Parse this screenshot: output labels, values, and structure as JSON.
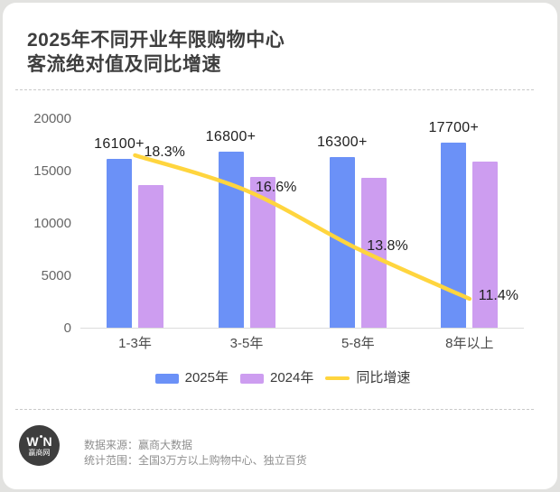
{
  "card": {
    "title_line1": "2025年不同开业年限购物中心",
    "title_line2": "客流绝对值及同比增速"
  },
  "chart_data": {
    "type": "bar",
    "title": "2025年不同开业年限购物中心客流绝对值及同比增速",
    "categories": [
      "1-3年",
      "3-5年",
      "5-8年",
      "8年以上"
    ],
    "series": [
      {
        "name": "2025年",
        "kind": "bar",
        "color": "#6B91F7",
        "values": [
          16100,
          16800,
          16300,
          17700
        ],
        "labels": [
          "16100+",
          "16800+",
          "16300+",
          "17700+"
        ]
      },
      {
        "name": "2024年",
        "kind": "bar",
        "color": "#CD9DF0",
        "values": [
          13600,
          14400,
          14300,
          15900
        ],
        "labels": []
      },
      {
        "name": "同比增速",
        "kind": "line",
        "color": "#FFD53E",
        "values": [
          18.3,
          16.6,
          13.8,
          11.4
        ],
        "labels": [
          "18.3%",
          "16.6%",
          "13.8%",
          "11.4%"
        ],
        "unit": "%"
      }
    ],
    "xlabel": "",
    "ylabel": "",
    "y_axis": {
      "ticks": [
        0,
        5000,
        10000,
        15000,
        20000
      ],
      "min": 0,
      "max": 20000
    },
    "grid": false,
    "legend_position": "bottom"
  },
  "colors": {
    "bar_2025": "#6B91F7",
    "bar_2024": "#CD9DF0",
    "growth_line": "#FFD53E",
    "card_bg": "#FFFFFF",
    "page_bg": "#E2E2E0"
  },
  "logo": {
    "mark_left": "W",
    "mark_right": "N",
    "label": "赢商网"
  },
  "footer": {
    "source": "数据来源：赢商大数据",
    "scope": "统计范围：全国3万方以上购物中心、独立百货"
  }
}
